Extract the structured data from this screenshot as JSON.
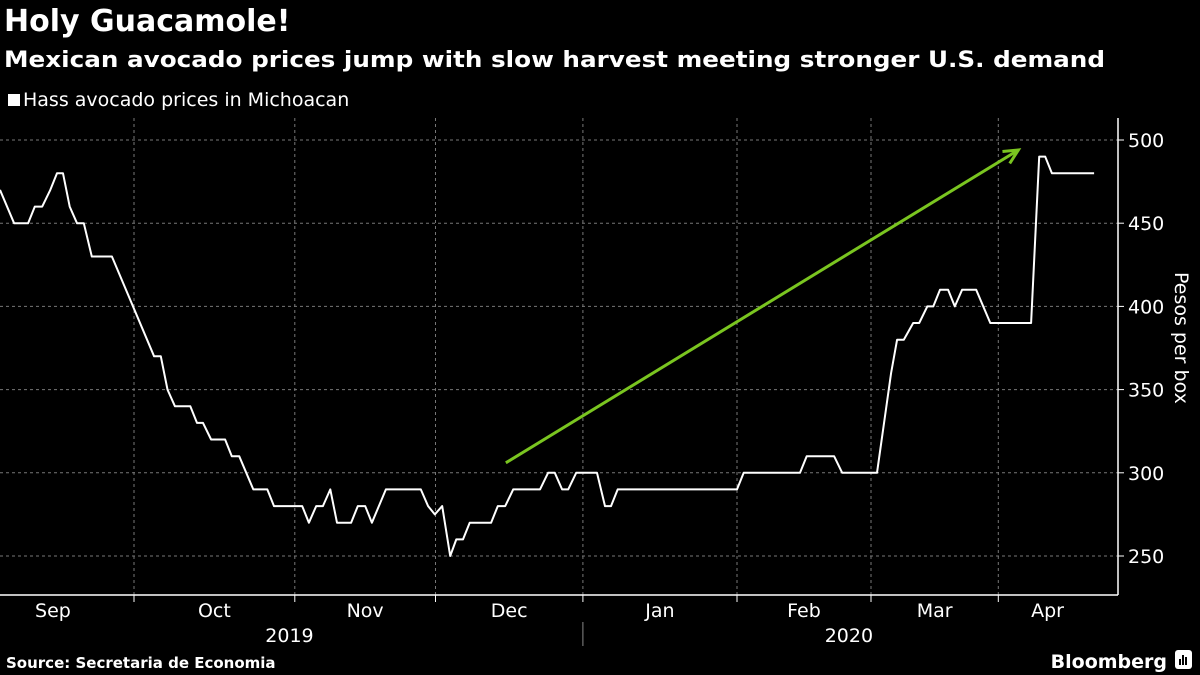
{
  "header": {
    "title": "Holy Guacamole!",
    "subtitle": "Mexican avocado prices jump with slow harvest meeting stronger U.S. demand"
  },
  "footer": {
    "source": "Source: Secretaria de Economia",
    "brand": "Bloomberg"
  },
  "chart_data": {
    "type": "line",
    "title": "Holy Guacamole!",
    "subtitle": "Mexican avocado prices jump with slow harvest meeting stronger U.S. demand",
    "xlabel": "",
    "ylabel": "Pesos per box",
    "x_units": "trading days from start of series (approx.)",
    "ylim": [
      240,
      510
    ],
    "yticks": [
      250,
      300,
      350,
      400,
      450,
      500
    ],
    "grid": true,
    "legend": {
      "placement": "top-left",
      "entries": [
        "Hass avocado prices in Michoacan"
      ]
    },
    "month_boundaries": [
      -4.2,
      20,
      44,
      65,
      87,
      110,
      130,
      149,
      163.7
    ],
    "months": [
      "Sep",
      "Oct",
      "Nov",
      "Dec",
      "Jan",
      "Feb",
      "Mar",
      "Apr"
    ],
    "years": [
      {
        "label": "2019",
        "from": 0,
        "to": 87
      },
      {
        "label": "2020",
        "from": 87,
        "to": 167
      }
    ],
    "xlim": [
      0,
      167
    ],
    "series": [
      {
        "name": "Hass avocado prices in Michoacan",
        "color": "#ffffff",
        "x": [
          0,
          2.1,
          4.2,
          5.2,
          6.3,
          7.5,
          8.5,
          9.4,
          10.4,
          11.5,
          12.5,
          13.7,
          16.7,
          23,
          24,
          25,
          26.1,
          28.4,
          29.4,
          30.3,
          31.5,
          33.6,
          34.6,
          35.7,
          37.8,
          39.9,
          40.9,
          45.1,
          46.1,
          47.2,
          48.2,
          49.3,
          50.3,
          52.4,
          53.4,
          54.5,
          55.5,
          57.6,
          62.8,
          63.9,
          64.9,
          66,
          67.2,
          68.1,
          69.1,
          70.1,
          73.3,
          74.3,
          75.4,
          76.6,
          80.6,
          81.8,
          82.8,
          83.9,
          84.8,
          86,
          89.1,
          90.3,
          91.2,
          92.2,
          110,
          111,
          119.4,
          120.4,
          124.5,
          125.7,
          130.9,
          133,
          133.9,
          134.9,
          136.3,
          137.2,
          138.4,
          139.3,
          140.3,
          141.5,
          142.5,
          143.6,
          145.7,
          147.8,
          153.9,
          155.1,
          156,
          157,
          163.3
        ],
        "values": [
          470,
          450,
          450,
          460,
          460,
          470,
          480,
          480,
          460,
          450,
          450,
          430,
          430,
          370,
          370,
          350,
          340,
          340,
          330,
          330,
          320,
          320,
          310,
          310,
          290,
          290,
          280,
          280,
          270,
          280,
          280,
          290,
          270,
          270,
          280,
          280,
          270,
          290,
          290,
          280,
          275,
          280,
          250,
          260,
          260,
          270,
          270,
          280,
          280,
          290,
          290,
          300,
          300,
          290,
          290,
          300,
          300,
          280,
          280,
          290,
          290,
          300,
          300,
          310,
          310,
          300,
          300,
          360,
          380,
          380,
          390,
          390,
          400,
          400,
          410,
          410,
          400,
          410,
          410,
          390,
          390,
          490,
          490,
          480,
          480
        ]
      }
    ],
    "annotations": [
      {
        "type": "arrow",
        "color": "#7ac520",
        "from": [
          75.5,
          306
        ],
        "to": [
          152,
          494
        ]
      }
    ]
  }
}
